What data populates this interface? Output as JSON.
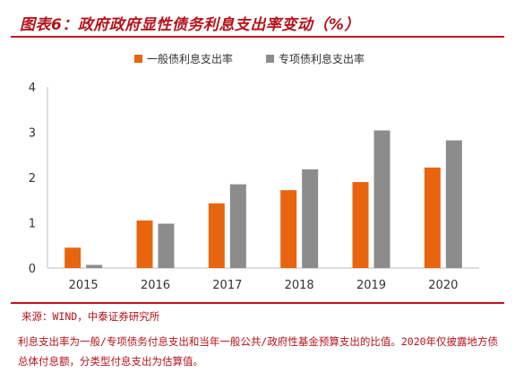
{
  "title": "图表6：政府政府显性债务利息支出率变动（%）",
  "source": "来源：WIND，中泰证券研究所",
  "note": "利息支出率为一般/专项债务付息支出和当年一般公共/政府性基金预算支出的比值。2020年仅披露地方债总体付息额，分类型付息支出为估算值。",
  "colors": {
    "series1": "#e8650f",
    "series2": "#8c8c8c",
    "accent": "#b5121b"
  },
  "chart_data": {
    "type": "bar",
    "title": "政府政府显性债务利息支出率变动（%）",
    "categories": [
      "2015",
      "2016",
      "2017",
      "2018",
      "2019",
      "2020"
    ],
    "series": [
      {
        "name": "一般债利息支出率",
        "values": [
          0.45,
          1.05,
          1.43,
          1.72,
          1.9,
          2.22
        ]
      },
      {
        "name": "专项债利息支出率",
        "values": [
          0.07,
          0.98,
          1.85,
          2.18,
          3.04,
          2.82
        ]
      }
    ],
    "yticks": [
      "0",
      "1",
      "2",
      "3",
      "4"
    ],
    "ylim": [
      0,
      4
    ],
    "xlabel": "",
    "ylabel": "",
    "grid": false,
    "legend": "top-center"
  }
}
